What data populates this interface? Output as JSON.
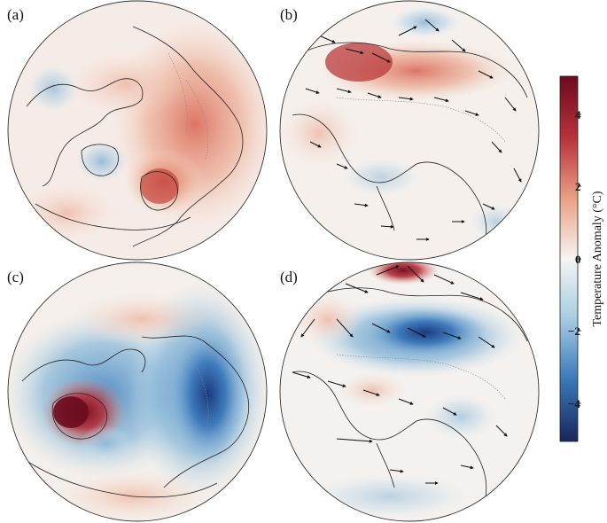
{
  "figure": {
    "panels": [
      {
        "label": "(a)",
        "projection": "north-polar",
        "pattern": "warm-eurasia"
      },
      {
        "label": "(b)",
        "projection": "asia-orthographic",
        "pattern": "warm-north-with-wind-vectors"
      },
      {
        "label": "(c)",
        "projection": "north-polar",
        "pattern": "warm-north-america-cold-eurasia"
      },
      {
        "label": "(d)",
        "projection": "asia-orthographic",
        "pattern": "cold-central-asia-with-wind-vectors"
      }
    ]
  },
  "colorbar": {
    "title": "Temperature Anomaly (°C)",
    "ticks": [
      "4",
      "2",
      "0",
      "−2",
      "−4"
    ],
    "colors": [
      "#6b0b1f",
      "#c44a45",
      "#f2c2ad",
      "#f5f4f2",
      "#b7d5e6",
      "#4f8ec2",
      "#1b2f6b"
    ]
  }
}
